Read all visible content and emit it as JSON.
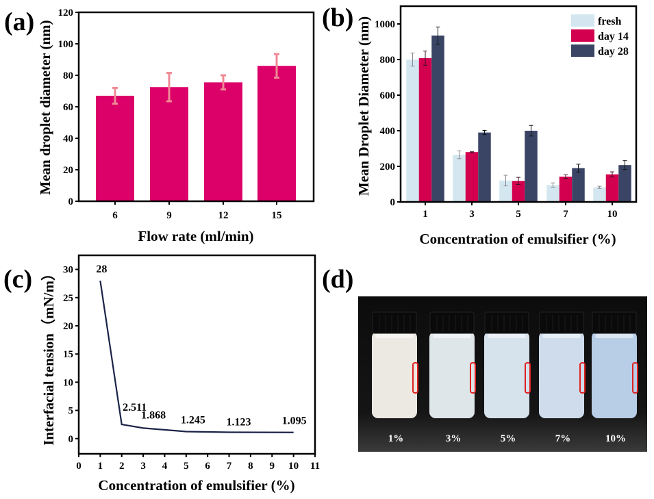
{
  "colors": {
    "bar_a": "#dc0069",
    "err_a": "#f08a96",
    "fresh": "#d4e7f1",
    "day14": "#d2004e",
    "day28": "#3a4566",
    "line_c": "#1b2347",
    "axis": "#000000"
  },
  "chart_data": [
    {
      "panel_label": "(a)",
      "type": "bar",
      "xlabel": "Flow rate (ml/min)",
      "ylabel": "Mean droplet diameter (nm)",
      "categories": [
        "6",
        "9",
        "12",
        "15"
      ],
      "values": [
        67,
        72.5,
        75.5,
        86
      ],
      "errors": [
        5,
        9,
        4.5,
        7.5
      ],
      "ylim": [
        0,
        120
      ],
      "yticks": [
        "0",
        "20",
        "40",
        "60",
        "80",
        "100",
        "120"
      ],
      "grid": false
    },
    {
      "panel_label": "(b)",
      "type": "bar",
      "xlabel": "Concentration of emulsifier (%)",
      "ylabel": "Mean Droplet Diameter (nm)",
      "categories": [
        "1",
        "3",
        "5",
        "7",
        "10"
      ],
      "series": [
        {
          "name": "fresh",
          "values": [
            800,
            265,
            120,
            95,
            82
          ],
          "errors": [
            37,
            22,
            30,
            12,
            6
          ]
        },
        {
          "name": "day 14",
          "values": [
            808,
            280,
            118,
            142,
            155
          ],
          "errors": [
            40,
            2,
            20,
            10,
            14
          ]
        },
        {
          "name": "day 28",
          "values": [
            935,
            390,
            400,
            190,
            207
          ],
          "errors": [
            48,
            12,
            30,
            22,
            25
          ]
        }
      ],
      "ylim": [
        0,
        1100
      ],
      "yticks": [
        "0",
        "200",
        "400",
        "600",
        "800",
        "1000"
      ],
      "legend_position": "top-right",
      "grid": false
    },
    {
      "panel_label": "(c)",
      "type": "line",
      "xlabel": "Concentration of emulsifier (%)",
      "ylabel": "Interfacial tension（mN/m）",
      "x": [
        1,
        2,
        3,
        5,
        7,
        10
      ],
      "y": [
        28,
        2.511,
        1.868,
        1.245,
        1.123,
        1.095
      ],
      "point_labels": [
        "28",
        "2.511",
        "1.868",
        "1.245",
        "1.123",
        "1.095"
      ],
      "xlim": [
        0,
        11
      ],
      "ylim": [
        -2.7,
        32.5
      ],
      "xticks": [
        "0",
        "1",
        "2",
        "3",
        "4",
        "5",
        "6",
        "7",
        "8",
        "9",
        "10",
        "11"
      ],
      "yticks": [
        "0",
        "5",
        "10",
        "15",
        "20",
        "25",
        "30"
      ],
      "grid": false
    }
  ],
  "photo": {
    "panel_label": "(d)",
    "vials": [
      {
        "label": "1%",
        "liquid": "#ece8e2"
      },
      {
        "label": "3%",
        "liquid": "#dfe6ea"
      },
      {
        "label": "5%",
        "liquid": "#d6e2ec"
      },
      {
        "label": "7%",
        "liquid": "#cfdceb"
      },
      {
        "label": "10%",
        "liquid": "#b8cde6"
      }
    ]
  }
}
